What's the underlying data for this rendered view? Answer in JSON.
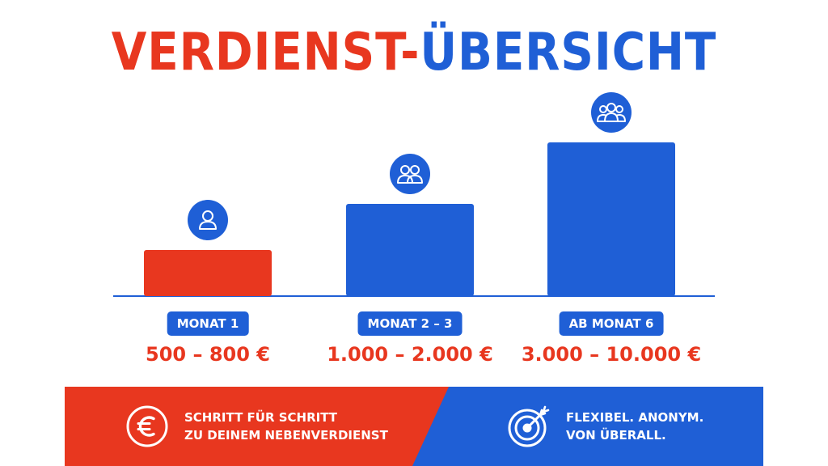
{
  "title": {
    "part1": "VERDIENST-",
    "part2": "ÜBERSICHT"
  },
  "colors": {
    "red": "#e8371f",
    "blue": "#1f5fd6"
  },
  "chart_data": {
    "type": "bar",
    "categories": [
      "MONAT 1",
      "MONAT 2 – 3",
      "AB MONAT 6"
    ],
    "value_labels": [
      "500 – 800 €",
      "1.000 – 2.000 €",
      "3.000 – 10.000 €"
    ],
    "values": [
      30,
      60,
      100
    ],
    "bar_colors": [
      "#e8371f",
      "#1f5fd6",
      "#1f5fd6"
    ],
    "icons": [
      "single-user-icon",
      "two-users-icon",
      "group-users-icon"
    ],
    "title": "VERDIENST-ÜBERSICHT",
    "xlabel": "",
    "ylabel": "",
    "grid": false
  },
  "footer": {
    "left": {
      "icon": "euro-coin-icon",
      "line1": "SCHRITT FÜR SCHRITT",
      "line2": "ZU DEINEM NEBENVERDIENST"
    },
    "right": {
      "icon": "target-arrow-icon",
      "line1": "FLEXIBEL. ANONYM.",
      "line2": "VON ÜBERALL."
    }
  }
}
